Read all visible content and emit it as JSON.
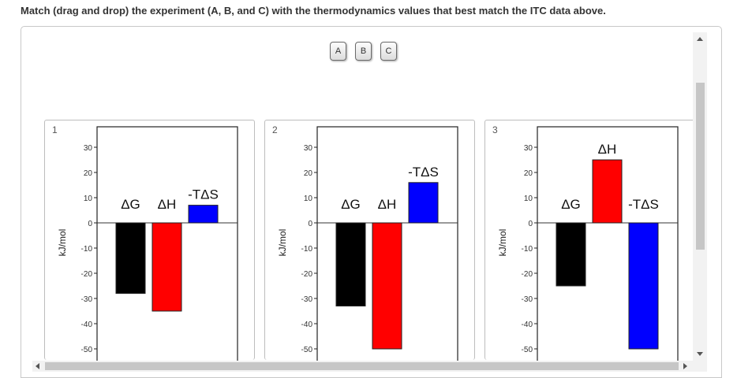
{
  "question": "Match (drag and drop) the experiment (A, B, and C) with the thermodynamics values that best match the ITC data above.",
  "tokens": [
    "A",
    "B",
    "C"
  ],
  "zones": [
    {
      "number": "1"
    },
    {
      "number": "2"
    },
    {
      "number": "3"
    }
  ],
  "chart_data": [
    {
      "type": "bar",
      "ylabel": "kJ/mol",
      "ylim": [
        -55,
        35
      ],
      "yticks": [
        30,
        20,
        10,
        0,
        -10,
        -20,
        -30,
        -40,
        -50
      ],
      "categories": [
        "ΔG",
        "ΔH",
        "-TΔS"
      ],
      "values": [
        -28,
        -35,
        7
      ],
      "colors": [
        "#000000",
        "#ff0000",
        "#0000ff"
      ]
    },
    {
      "type": "bar",
      "ylabel": "kJ/mol",
      "ylim": [
        -55,
        35
      ],
      "yticks": [
        30,
        20,
        10,
        0,
        -10,
        -20,
        -30,
        -40,
        -50
      ],
      "categories": [
        "ΔG",
        "ΔH",
        "-TΔS"
      ],
      "values": [
        -33,
        -50,
        16
      ],
      "colors": [
        "#000000",
        "#ff0000",
        "#0000ff"
      ]
    },
    {
      "type": "bar",
      "ylabel": "kJ/mol",
      "ylim": [
        -55,
        35
      ],
      "yticks": [
        30,
        20,
        10,
        0,
        -10,
        -20,
        -30,
        -40,
        -50
      ],
      "categories": [
        "ΔG",
        "ΔH",
        "-TΔS"
      ],
      "values": [
        -25,
        25,
        -50
      ],
      "colors": [
        "#000000",
        "#ff0000",
        "#0000ff"
      ]
    }
  ]
}
